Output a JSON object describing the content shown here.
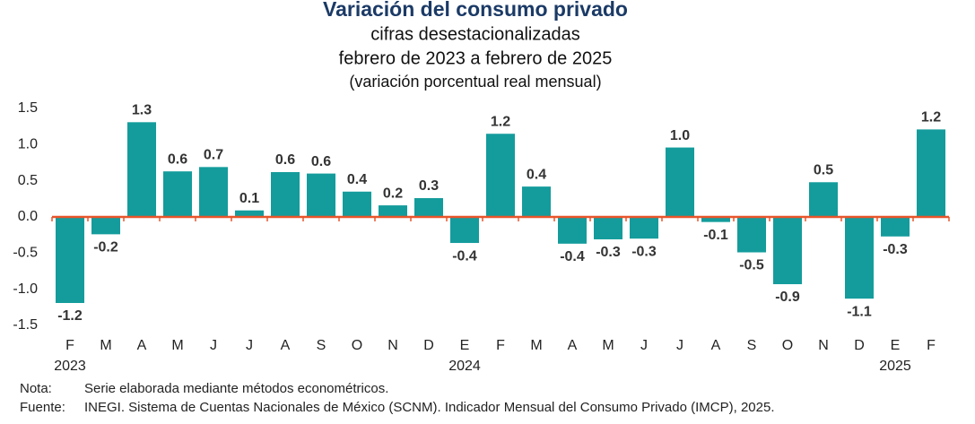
{
  "chart_data": {
    "type": "bar",
    "title": "Variación del consumo privado",
    "subtitle": [
      "cifras desestacionalizadas",
      "febrero de 2023 a febrero de 2025",
      "(variación porcentual real mensual)"
    ],
    "categories": [
      "F",
      "M",
      "A",
      "M",
      "J",
      "J",
      "A",
      "S",
      "O",
      "N",
      "D",
      "E",
      "F",
      "M",
      "A",
      "M",
      "J",
      "J",
      "A",
      "S",
      "O",
      "N",
      "D",
      "E",
      "F"
    ],
    "years": [
      "2023",
      null,
      null,
      null,
      null,
      null,
      null,
      null,
      null,
      null,
      null,
      "2024",
      null,
      null,
      null,
      null,
      null,
      null,
      null,
      null,
      null,
      null,
      null,
      "2025",
      null
    ],
    "values": [
      -1.19,
      -0.24,
      1.31,
      0.63,
      0.69,
      0.09,
      0.62,
      0.6,
      0.35,
      0.16,
      0.26,
      -0.36,
      1.15,
      0.42,
      -0.37,
      -0.31,
      -0.3,
      0.96,
      -0.07,
      -0.49,
      -0.93,
      0.48,
      -1.13,
      -0.27,
      1.21
    ],
    "value_labels": [
      "-1.2",
      "-0.2",
      "1.3",
      "0.6",
      "0.7",
      "0.1",
      "0.6",
      "0.6",
      "0.4",
      "0.2",
      "0.3",
      "-0.4",
      "1.2",
      "0.4",
      "-0.4",
      "-0.3",
      "-0.3",
      "1.0",
      "-0.1",
      "-0.5",
      "-0.9",
      "0.5",
      "-1.1",
      "-0.3",
      "1.2"
    ],
    "color": "#149c9c",
    "zero_line_color": "#e8552a",
    "ylim": [
      -1.5,
      1.5
    ],
    "yticks": [
      1.5,
      {
        "value": 1.0,
        "label": "1.0"
      },
      0.5,
      {
        "value": 0.0,
        "label": "0.0"
      },
      -0.5,
      {
        "value": -1.0,
        "label": "-1.0"
      },
      -1.5
    ],
    "grid": false
  },
  "notes": [
    [
      "Nota:",
      "Serie elaborada mediante métodos econométricos."
    ],
    [
      "Fuente:",
      "INEGI. Sistema de Cuentas Nacionales de México (SCNM). Indicador Mensual del Consumo Privado (IMCP), 2025."
    ]
  ]
}
